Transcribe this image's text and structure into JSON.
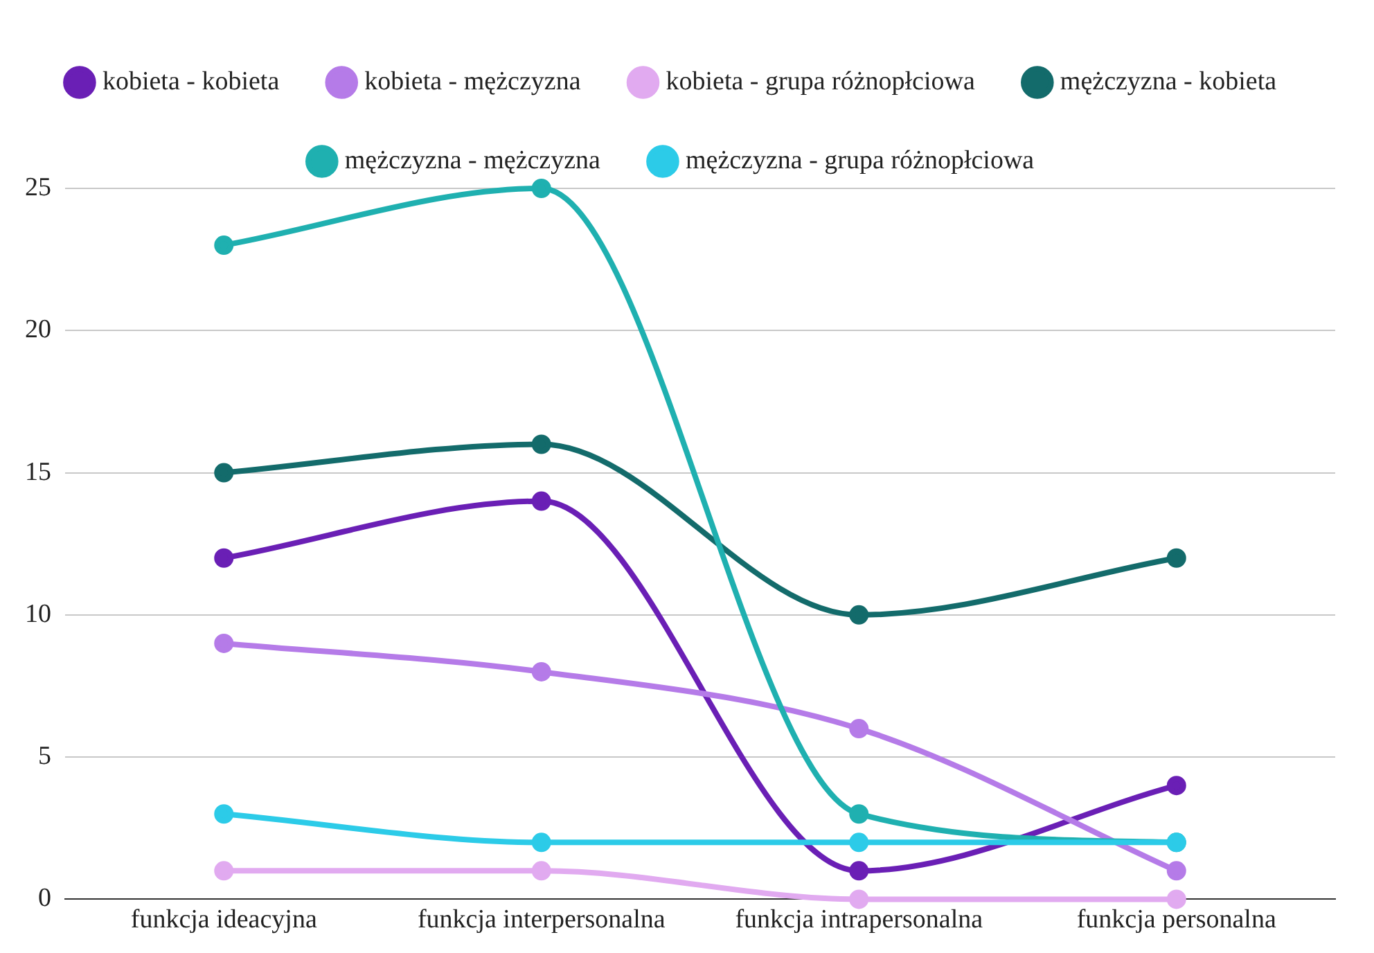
{
  "chart_data": {
    "type": "line",
    "categories": [
      "funkcja ideacyjna",
      "funkcja interpersonalna",
      "funkcja intrapersonalna",
      "funkcja personalna"
    ],
    "series": [
      {
        "name": "kobieta - kobieta",
        "color": "#6a1fb5",
        "values": [
          12,
          14,
          1,
          4
        ]
      },
      {
        "name": "kobieta - mężczyzna",
        "color": "#b57be8",
        "values": [
          9,
          8,
          6,
          1
        ]
      },
      {
        "name": "kobieta - grupa różnopłciowa",
        "color": "#e1aaf0",
        "values": [
          1,
          1,
          0,
          0
        ]
      },
      {
        "name": "mężczyzna - kobieta",
        "color": "#136b6b",
        "values": [
          15,
          16,
          10,
          12
        ]
      },
      {
        "name": "mężczyzna - mężczyzna",
        "color": "#1fb0b0",
        "values": [
          23,
          25,
          3,
          2
        ]
      },
      {
        "name": "mężczyzna - grupa różnopłciowa",
        "color": "#2ccbe8",
        "values": [
          3,
          2,
          2,
          2
        ]
      }
    ],
    "ylim": [
      0,
      25
    ],
    "yticks": [
      0,
      5,
      10,
      15,
      20,
      25
    ],
    "grid": "y",
    "legend": "top",
    "marker": "circle",
    "line_style": "solid"
  }
}
